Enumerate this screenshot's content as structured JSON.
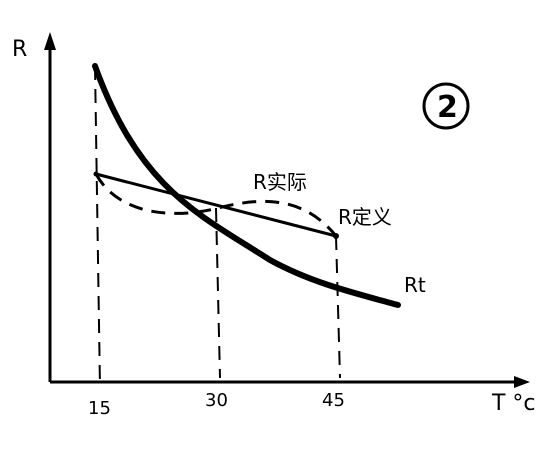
{
  "axes": {
    "y_label": "R",
    "x_label": "T °c",
    "ticks": [
      "15",
      "30",
      "45"
    ]
  },
  "labels": {
    "actual": "R实际",
    "defined": "R定义",
    "rt": "Rt"
  },
  "badge": "2",
  "colors": {
    "ink": "#000000",
    "paper": "#ffffff"
  }
}
